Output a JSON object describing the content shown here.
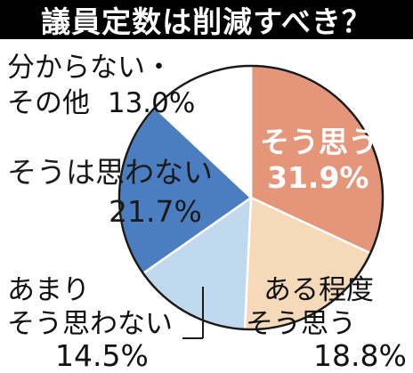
{
  "colors": {
    "title_bg": "#000000",
    "title_fg": "#ffffff",
    "slice_yes": "#e5957a",
    "slice_somewhat": "#f6d9b8",
    "slice_not_really": "#c1d9ef",
    "slice_no": "#4a7ec0",
    "slice_unknown": "#ffffff",
    "outline": "#1a1a1a"
  },
  "chart_data": {
    "type": "pie",
    "title": "議員定数は削減すべき？",
    "slices": [
      {
        "label": "そう思う",
        "value": 31.9,
        "display": "31.9%",
        "color": "#e5957a"
      },
      {
        "label": "ある程度そう思う",
        "line1": "ある程度",
        "line2": "そう思う",
        "value": 18.8,
        "display": "18.8%",
        "color": "#f6d9b8"
      },
      {
        "label": "あまりそう思わない",
        "line1": "あまり",
        "line2": "そう思わない",
        "value": 14.5,
        "display": "14.5%",
        "color": "#c1d9ef"
      },
      {
        "label": "そうは思わない",
        "value": 21.7,
        "display": "21.7%",
        "color": "#4a7ec0"
      },
      {
        "label": "分からない・その他",
        "line1": "分からない・",
        "line2": "その他",
        "value": 13.0,
        "display": "13.0%",
        "color": "#ffffff"
      }
    ],
    "start_direction": "12 o'clock",
    "direction": "clockwise",
    "legend": "none"
  }
}
